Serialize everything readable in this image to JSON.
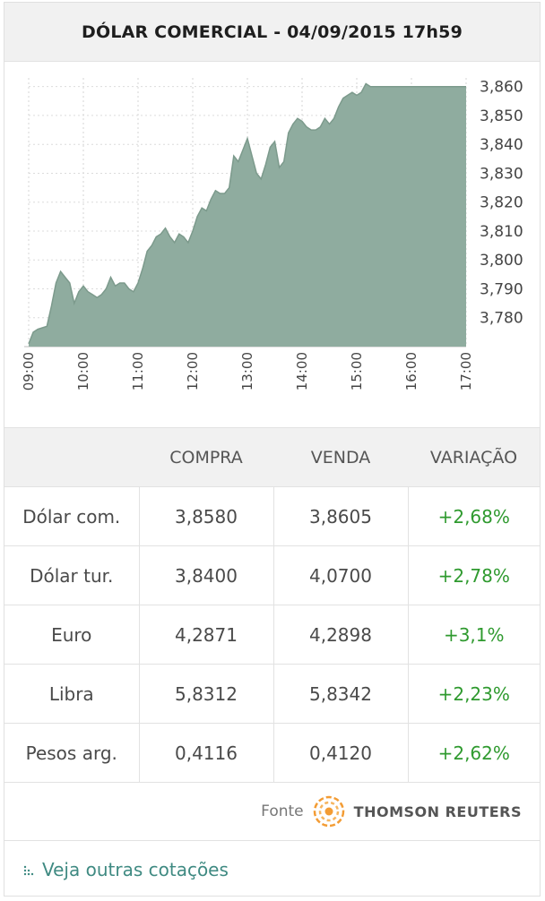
{
  "header": {
    "title": "DÓLAR COMERCIAL - 04/09/2015 17h59"
  },
  "chart_data": {
    "type": "area",
    "title": "",
    "xlabel": "",
    "ylabel": "",
    "xlim": [
      "09:00",
      "17:00"
    ],
    "ylim": [
      3.77,
      3.863
    ],
    "x_ticks": [
      "09:00",
      "10:00",
      "11:00",
      "12:00",
      "13:00",
      "14:00",
      "15:00",
      "16:00",
      "17:00"
    ],
    "y_ticks": [
      "3,860",
      "3,850",
      "3,840",
      "3,830",
      "3,820",
      "3,810",
      "3,800",
      "3,790",
      "3,780"
    ],
    "grid": true,
    "color": "#8fac9f",
    "series": [
      {
        "x": [
          "09:00",
          "09:05",
          "09:10",
          "09:20",
          "09:25",
          "09:30",
          "09:35",
          "09:40",
          "09:45",
          "09:50",
          "09:55",
          "10:00",
          "10:05",
          "10:10",
          "10:15",
          "10:20",
          "10:25",
          "10:30",
          "10:35",
          "10:40",
          "10:45",
          "10:50",
          "10:55",
          "11:00",
          "11:05",
          "11:10",
          "11:15",
          "11:20",
          "11:25",
          "11:30",
          "11:35",
          "11:40",
          "11:45",
          "11:50",
          "11:55",
          "12:00",
          "12:05",
          "12:10",
          "12:15",
          "12:20",
          "12:25",
          "12:30",
          "12:35",
          "12:40",
          "12:45",
          "12:50",
          "12:55",
          "13:00",
          "13:05",
          "13:10",
          "13:15",
          "13:20",
          "13:25",
          "13:30",
          "13:35",
          "13:40",
          "13:45",
          "13:50",
          "13:55",
          "14:00",
          "14:05",
          "14:10",
          "14:15",
          "14:20",
          "14:25",
          "14:30",
          "14:35",
          "14:40",
          "14:45",
          "14:50",
          "14:55",
          "15:00",
          "15:05",
          "15:10",
          "15:15",
          "15:20",
          "15:25",
          "15:30",
          "15:35",
          "15:40",
          "15:45",
          "15:50",
          "15:55",
          "16:00",
          "16:05",
          "16:10",
          "16:15",
          "16:20",
          "16:25",
          "16:30",
          "16:35",
          "16:40",
          "16:45",
          "16:50",
          "16:55",
          "17:00"
        ],
        "y": [
          3.771,
          3.775,
          3.776,
          3.777,
          3.784,
          3.792,
          3.796,
          3.794,
          3.792,
          3.785,
          3.789,
          3.791,
          3.789,
          3.788,
          3.787,
          3.788,
          3.79,
          3.794,
          3.791,
          3.792,
          3.792,
          3.79,
          3.789,
          3.792,
          3.797,
          3.803,
          3.805,
          3.808,
          3.809,
          3.811,
          3.808,
          3.806,
          3.809,
          3.808,
          3.806,
          3.81,
          3.815,
          3.818,
          3.817,
          3.821,
          3.824,
          3.823,
          3.823,
          3.825,
          3.836,
          3.834,
          3.838,
          3.842,
          3.836,
          3.83,
          3.828,
          3.833,
          3.839,
          3.841,
          3.832,
          3.834,
          3.844,
          3.847,
          3.849,
          3.848,
          3.846,
          3.845,
          3.845,
          3.846,
          3.849,
          3.847,
          3.849,
          3.853,
          3.856,
          3.857,
          3.858,
          3.857,
          3.858,
          3.861,
          3.86,
          3.86,
          3.86,
          3.86,
          3.86,
          3.86,
          3.86,
          3.86,
          3.86,
          3.86,
          3.86,
          3.86,
          3.86,
          3.86,
          3.86,
          3.86,
          3.86,
          3.86,
          3.86,
          3.86,
          3.86,
          3.86
        ]
      }
    ]
  },
  "table": {
    "headers": [
      "",
      "COMPRA",
      "VENDA",
      "VARIAÇÃO"
    ],
    "rows": [
      {
        "name": "Dólar com.",
        "compra": "3,8580",
        "venda": "3,8605",
        "variacao": "+2,68%"
      },
      {
        "name": "Dólar tur.",
        "compra": "3,8400",
        "venda": "4,0700",
        "variacao": "+2,78%"
      },
      {
        "name": "Euro",
        "compra": "4,2871",
        "venda": "4,2898",
        "variacao": "+3,1%"
      },
      {
        "name": "Libra",
        "compra": "5,8312",
        "venda": "5,8342",
        "variacao": "+2,23%"
      },
      {
        "name": "Pesos arg.",
        "compra": "0,4116",
        "venda": "0,4120",
        "variacao": "+2,62%"
      }
    ]
  },
  "source": {
    "label": "Fonte",
    "provider": "THOMSON REUTERS",
    "logo_icon": "thomson-reuters-logo-icon",
    "logo_color": "#f39c34"
  },
  "footer": {
    "link_label": "Veja outras cotações",
    "link_color": "#3f8a82",
    "positive_color": "#2f9a2f"
  }
}
